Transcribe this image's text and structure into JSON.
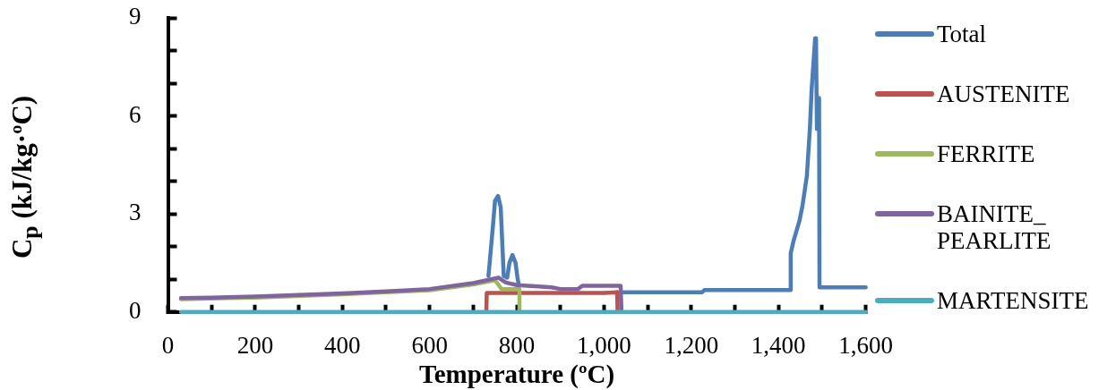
{
  "chart_data": {
    "type": "line",
    "xlabel": "Temperature (ºC)",
    "ylabel": "C$_{p}$ (kJ/kg·ºC)",
    "xlim": [
      0,
      1600
    ],
    "ylim": [
      0,
      9
    ],
    "xticks": [
      0,
      {
        "value": 100,
        "label": null
      },
      200,
      {
        "value": 300,
        "label": null
      },
      400,
      {
        "value": 500,
        "label": null
      },
      600,
      {
        "value": 700,
        "label": null
      },
      800,
      {
        "value": 900,
        "label": null
      },
      {
        "value": 1000,
        "label": "1,000"
      },
      {
        "value": 1100,
        "label": null
      },
      {
        "value": 1200,
        "label": "1,200"
      },
      {
        "value": 1300,
        "label": null
      },
      {
        "value": 1400,
        "label": "1,400"
      },
      {
        "value": 1500,
        "label": null
      },
      {
        "value": 1600,
        "label": "1,600"
      }
    ],
    "yticks": [
      0,
      {
        "value": 1,
        "label": null
      },
      {
        "value": 2,
        "label": null
      },
      3,
      {
        "value": 4,
        "label": null
      },
      {
        "value": 5,
        "label": null
      },
      6,
      {
        "value": 7,
        "label": null
      },
      {
        "value": 8,
        "label": null
      },
      9
    ],
    "legend": "right",
    "marker": "none",
    "series": [
      {
        "name": "Total",
        "color": "#4a7ebb",
        "x": [
          735,
          745,
          750,
          757,
          763,
          767,
          770,
          778,
          783,
          790,
          797,
          802,
          805,
          900,
          1037,
          1225,
          1230,
          1428,
          1428,
          1434,
          1448,
          1455,
          1465,
          1472,
          1476,
          1484,
          1486,
          1488,
          1490,
          1493,
          1494,
          1600
        ],
        "values": [
          1.1,
          2.6,
          3.4,
          3.55,
          3.2,
          2.0,
          1.1,
          1.05,
          1.5,
          1.74,
          1.5,
          1.0,
          0.8,
          null,
          0.6,
          0.6,
          0.67,
          0.67,
          1.8,
          2.15,
          2.79,
          3.25,
          4.16,
          5.63,
          6.82,
          8.38,
          8.38,
          5.6,
          5.6,
          6.55,
          0.75,
          0.75
        ]
      },
      {
        "name": "AUSTENITE",
        "color": "#c0504d",
        "x": [
          730,
          731,
          1000,
          1030,
          1031
        ],
        "values": [
          0,
          0.58,
          0.58,
          0.6,
          0
        ]
      },
      {
        "name": "FERRITE",
        "color": "#9bbb59",
        "x": [
          30,
          200,
          400,
          600,
          700,
          750,
          765,
          790,
          806,
          806
        ],
        "values": [
          0.39,
          0.44,
          0.54,
          0.66,
          0.84,
          0.97,
          0.7,
          0.7,
          0.7,
          0
        ]
      },
      {
        "name": "BAINITE_PEARLITE",
        "color": "#8064a2",
        "x": [
          30,
          100,
          200,
          300,
          400,
          500,
          600,
          700,
          758,
          775,
          800,
          850,
          880,
          900,
          940,
          950,
          1000,
          1038,
          1040
        ],
        "values": [
          0.42,
          0.44,
          0.47,
          0.52,
          0.57,
          0.63,
          0.7,
          0.88,
          1.05,
          0.9,
          0.82,
          0.78,
          0.75,
          0.7,
          0.7,
          0.8,
          0.8,
          0.8,
          0
        ]
      },
      {
        "name": "MARTENSITE",
        "color": "#4bacc6",
        "x": [
          30,
          1600
        ],
        "values": [
          0,
          0
        ]
      }
    ]
  }
}
